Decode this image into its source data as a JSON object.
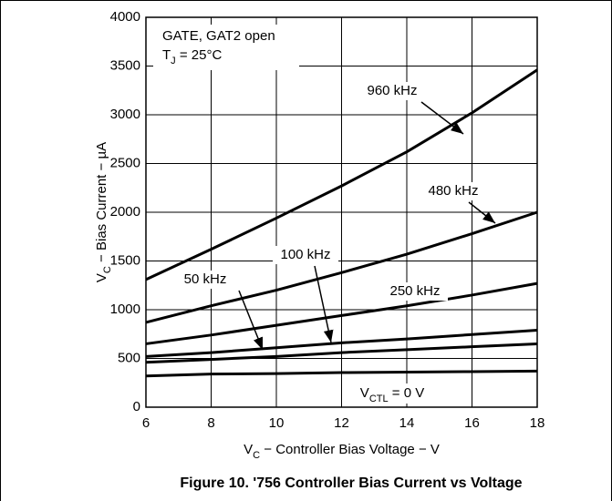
{
  "chart_data": {
    "type": "line",
    "title": "Figure 10. '756 Controller Bias Current vs Voltage",
    "x_label_parts": [
      "V",
      "C",
      " − Controller Bias Voltage − V"
    ],
    "y_label_parts": [
      "V",
      "C",
      " − Bias Current − µA"
    ],
    "annotations": [
      "GATE, GAT2 open"
    ],
    "condition_parts": [
      "T",
      "J",
      " = 25°C"
    ],
    "x": [
      6,
      8,
      10,
      12,
      14,
      16,
      18
    ],
    "series": [
      {
        "name": "960 kHz",
        "color": "#000000",
        "values": [
          1310,
          1620,
          1940,
          2270,
          2620,
          3020,
          3460
        ]
      },
      {
        "name": "480 kHz",
        "color": "#000000",
        "values": [
          870,
          1040,
          1200,
          1380,
          1570,
          1780,
          2000
        ]
      },
      {
        "name": "250 kHz",
        "color": "#000000",
        "values": [
          650,
          740,
          840,
          940,
          1040,
          1150,
          1270
        ]
      },
      {
        "name": "100 kHz",
        "color": "#000000",
        "values": [
          520,
          560,
          610,
          660,
          700,
          745,
          790
        ]
      },
      {
        "name": "50 kHz",
        "color": "#000000",
        "values": [
          460,
          490,
          520,
          560,
          590,
          620,
          650
        ]
      },
      {
        "name_parts": [
          "V",
          "CTL",
          " = 0 V"
        ],
        "color": "#000000",
        "values": [
          320,
          340,
          345,
          355,
          360,
          365,
          370
        ]
      }
    ],
    "xlim": [
      6,
      18
    ],
    "xticks": [
      6,
      8,
      10,
      12,
      14,
      16,
      18
    ],
    "ylim": [
      0,
      4000
    ],
    "yticks": [
      0,
      500,
      1000,
      1500,
      2000,
      2500,
      3000,
      3500,
      4000
    ],
    "grid": true
  }
}
